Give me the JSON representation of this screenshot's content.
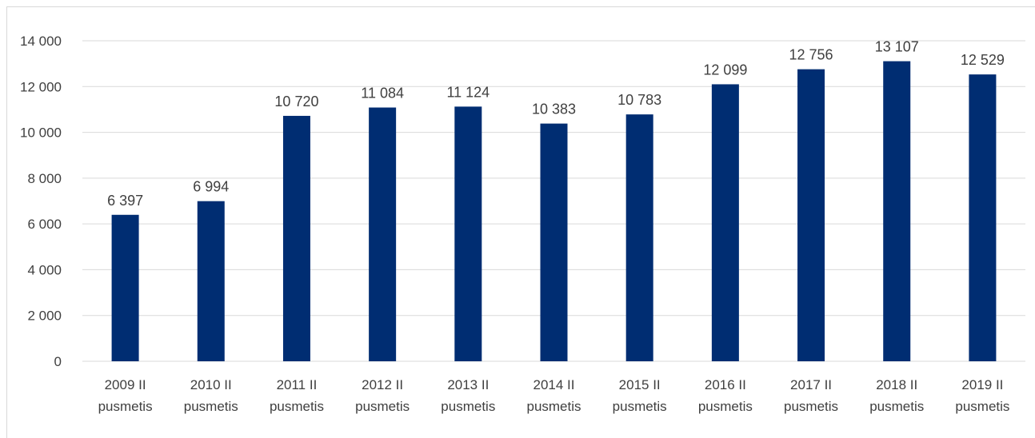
{
  "title_fragment": "                                                                                     ",
  "chart_data": {
    "type": "bar",
    "title": "",
    "xlabel": "",
    "ylabel": "",
    "ylim": [
      0,
      14000
    ],
    "yticks": [
      0,
      2000,
      4000,
      6000,
      8000,
      10000,
      12000,
      14000
    ],
    "ytick_labels": [
      "0",
      "2 000",
      "4 000",
      "6 000",
      "8 000",
      "10 000",
      "12 000",
      "14 000"
    ],
    "grid": true,
    "legend": "none",
    "bar_color": "#002d72",
    "categories": [
      [
        "2009 II",
        "pusmetis"
      ],
      [
        "2010 II",
        "pusmetis"
      ],
      [
        "2011 II",
        "pusmetis"
      ],
      [
        "2012 II",
        "pusmetis"
      ],
      [
        "2013 II",
        "pusmetis"
      ],
      [
        "2014 II",
        "pusmetis"
      ],
      [
        "2015 II",
        "pusmetis"
      ],
      [
        "2016 II",
        "pusmetis"
      ],
      [
        "2017 II",
        "pusmetis"
      ],
      [
        "2018 II",
        "pusmetis"
      ],
      [
        "2019 II",
        "pusmetis"
      ]
    ],
    "values": [
      6397,
      6994,
      10720,
      11084,
      11124,
      10383,
      10783,
      12099,
      12756,
      13107,
      12529
    ],
    "value_labels": [
      "6 397",
      "6 994",
      "10 720",
      "11 084",
      "11 124",
      "10 383",
      "10 783",
      "12 099",
      "12 756",
      "13 107",
      "12 529"
    ]
  }
}
